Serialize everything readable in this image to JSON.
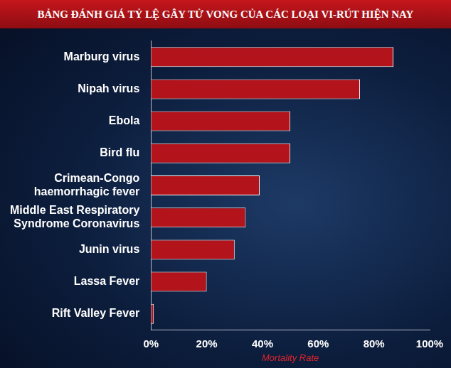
{
  "chart_data": {
    "type": "bar",
    "orientation": "horizontal",
    "title": "BẢNG ĐÁNH GIÁ TỶ LỆ GÂY TỬ VONG CỦA CÁC LOẠI VI-RÚT HIỆN NAY",
    "categories": [
      "Marburg virus",
      "Nipah virus",
      "Ebola",
      "Bird flu",
      "Crimean-Congo haemorrhagic fever",
      "Middle East Respiratory Syndrome Coronavirus",
      "Junin virus",
      "Lassa Fever",
      "Rift Valley Fever"
    ],
    "values": [
      87,
      75,
      50,
      50,
      39,
      34,
      30,
      20,
      1
    ],
    "color": "#b3141b",
    "xlabel": "Mortality Rate",
    "xlim": [
      0,
      100
    ],
    "xticks": [
      {
        "value": 0,
        "label": "0%"
      },
      {
        "value": 20,
        "label": "20%"
      },
      {
        "value": 40,
        "label": "40%"
      },
      {
        "value": 60,
        "label": "60%"
      },
      {
        "value": 80,
        "label": "80%"
      },
      {
        "value": 100,
        "label": "100%"
      }
    ],
    "grid": false
  }
}
